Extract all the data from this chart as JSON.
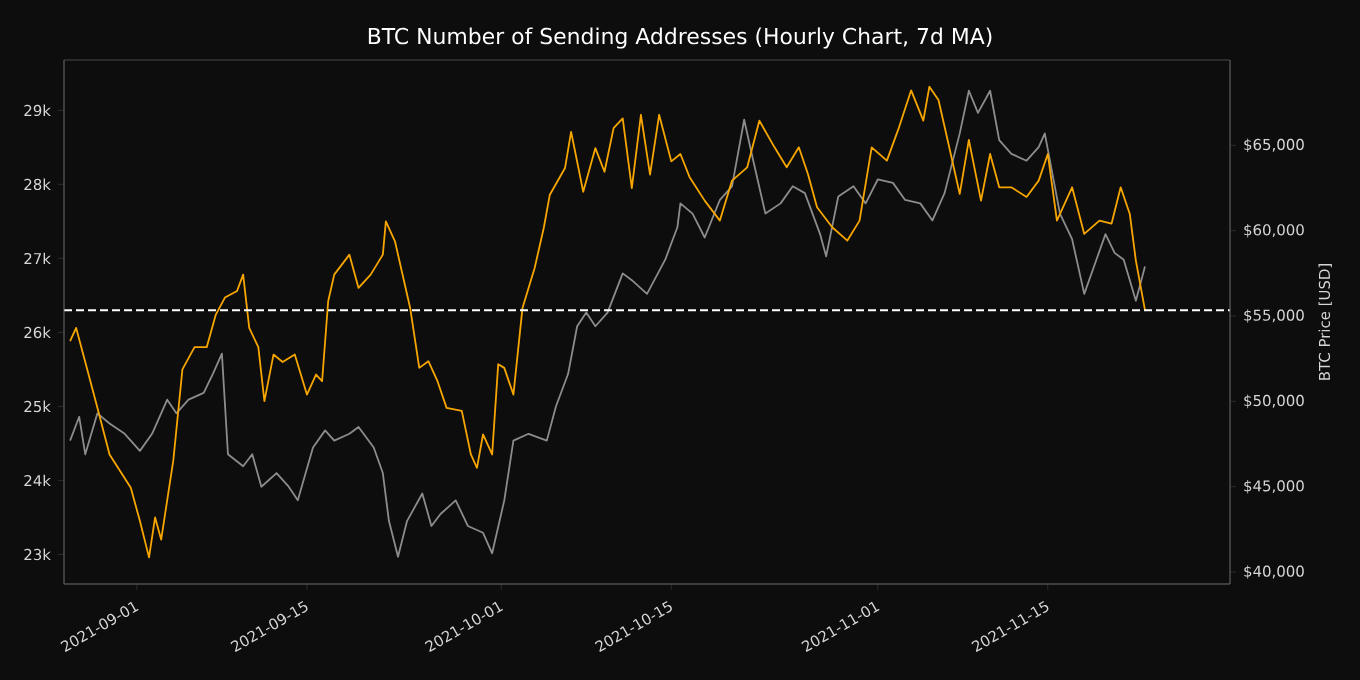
{
  "chart_data": {
    "type": "line",
    "title": "BTC Number of Sending Addresses (Hourly Chart, 7d MA)",
    "y2label": "BTC Price [USD]",
    "xlim": [
      "2021-08-26",
      "2021-11-30"
    ],
    "xticks": [
      {
        "value": "2021-09-01",
        "label": "2021-09-01"
      },
      {
        "value": "2021-09-15",
        "label": "2021-09-15"
      },
      {
        "value": "2021-10-01",
        "label": "2021-10-01"
      },
      {
        "value": "2021-10-15",
        "label": "2021-10-15"
      },
      {
        "value": "2021-11-01",
        "label": "2021-11-01"
      },
      {
        "value": "2021-11-15",
        "label": "2021-11-15"
      }
    ],
    "ylim": [
      22600,
      29680
    ],
    "yticks": [
      {
        "value": 23000,
        "label": "23k"
      },
      {
        "value": 24000,
        "label": "24k"
      },
      {
        "value": 25000,
        "label": "25k"
      },
      {
        "value": 26000,
        "label": "26k"
      },
      {
        "value": 27000,
        "label": "27k"
      },
      {
        "value": 28000,
        "label": "28k"
      },
      {
        "value": 29000,
        "label": "29k"
      }
    ],
    "y2lim": [
      39300,
      70000
    ],
    "y2ticks": [
      {
        "value": 40000,
        "label": "$40,000"
      },
      {
        "value": 45000,
        "label": "$45,000"
      },
      {
        "value": 50000,
        "label": "$50,000"
      },
      {
        "value": 55000,
        "label": "$55,000"
      },
      {
        "value": 60000,
        "label": "$60,000"
      },
      {
        "value": 65000,
        "label": "$65,000"
      }
    ],
    "grid": false,
    "marker": "none",
    "line_style": "solid",
    "ref_lines": [
      {
        "axis": "y",
        "value": 26300,
        "color": "#ffffff",
        "line_style": "dashed"
      }
    ],
    "series": [
      {
        "axis": "y2",
        "color": "#8c8c8c",
        "x": [
          "2021-08-26T12:00",
          "2021-08-27T06:00",
          "2021-08-27T18:00",
          "2021-08-28T18:00",
          "2021-08-29T18:00",
          "2021-08-31T00:00",
          "2021-09-01T06:00",
          "2021-09-02T06:00",
          "2021-09-03T12:00",
          "2021-09-04T06:00",
          "2021-09-05T06:00",
          "2021-09-06T12:00",
          "2021-09-07T06:00",
          "2021-09-08T00:00",
          "2021-09-08T12:00",
          "2021-09-09T18:00",
          "2021-09-10T12:00",
          "2021-09-11T06:00",
          "2021-09-12T12:00",
          "2021-09-13T12:00",
          "2021-09-14T06:00",
          "2021-09-15T12:00",
          "2021-09-16T12:00",
          "2021-09-17T06:00",
          "2021-09-18T12:00",
          "2021-09-19T06:00",
          "2021-09-20T12:00",
          "2021-09-21T06:00",
          "2021-09-21T18:00",
          "2021-09-22T12:00",
          "2021-09-23T06:00",
          "2021-09-24T12:00",
          "2021-09-25T06:00",
          "2021-09-26T00:00",
          "2021-09-27T06:00",
          "2021-09-28T06:00",
          "2021-09-29T12:00",
          "2021-09-30T06:00",
          "2021-10-01T06:00",
          "2021-10-02T00:00",
          "2021-10-03T06:00",
          "2021-10-04T18:00",
          "2021-10-05T12:00",
          "2021-10-06T12:00",
          "2021-10-07T06:00",
          "2021-10-08T00:00",
          "2021-10-08T18:00",
          "2021-10-09T18:00",
          "2021-10-11T00:00",
          "2021-10-11T18:00",
          "2021-10-13T00:00",
          "2021-10-14T12:00",
          "2021-10-15T12:00",
          "2021-10-15T18:00",
          "2021-10-16T18:00",
          "2021-10-17T18:00",
          "2021-10-19T00:00",
          "2021-10-20T00:00",
          "2021-10-21T00:00",
          "2021-10-21T18:00",
          "2021-10-22T18:00",
          "2021-10-24T00:00",
          "2021-10-25T00:00",
          "2021-10-26T00:00",
          "2021-10-27T06:00",
          "2021-10-27T18:00",
          "2021-10-28T18:00",
          "2021-10-30T00:00",
          "2021-10-31T00:00",
          "2021-11-01T00:00",
          "2021-11-02T06:00",
          "2021-11-03T06:00",
          "2021-11-04T12:00",
          "2021-11-05T12:00",
          "2021-11-06T12:00",
          "2021-11-07T18:00",
          "2021-11-08T12:00",
          "2021-11-09T06:00",
          "2021-11-10T06:00",
          "2021-11-11T00:00",
          "2021-11-12T00:00",
          "2021-11-13T06:00",
          "2021-11-14T06:00",
          "2021-11-14T18:00",
          "2021-11-16T00:00",
          "2021-11-17T00:00",
          "2021-11-18T00:00",
          "2021-11-19T00:00",
          "2021-11-19T18:00",
          "2021-11-20T12:00",
          "2021-11-21T06:00",
          "2021-11-22T06:00",
          "2021-11-23T00:00"
        ],
        "values": [
          47700,
          49100,
          46900,
          49300,
          48700,
          48100,
          47100,
          48100,
          50100,
          49300,
          50100,
          50500,
          51600,
          52800,
          46900,
          46200,
          46900,
          45000,
          45800,
          45000,
          44200,
          47300,
          48300,
          47700,
          48100,
          48500,
          47300,
          45800,
          43000,
          40900,
          43000,
          44600,
          42700,
          43400,
          44200,
          42700,
          42300,
          41100,
          44200,
          47700,
          48100,
          47700,
          49700,
          51600,
          54400,
          55200,
          54400,
          55200,
          57500,
          57100,
          56300,
          58300,
          60200,
          61600,
          61000,
          59600,
          61800,
          62600,
          66500,
          64100,
          61000,
          61600,
          62600,
          62200,
          59800,
          58500,
          62000,
          62600,
          61600,
          63000,
          62800,
          61800,
          61600,
          60600,
          62200,
          65700,
          68200,
          66900,
          68200,
          65300,
          64500,
          64100,
          64900,
          65700,
          61000,
          59500,
          56300,
          58300,
          59800,
          58700,
          58300,
          55900,
          57900
        ]
      },
      {
        "axis": "y",
        "color": "#f7a600",
        "x": [
          "2021-08-26T12:00",
          "2021-08-27T00:00",
          "2021-08-27T18:00",
          "2021-08-28T18:00",
          "2021-08-29T18:00",
          "2021-08-31T12:00",
          "2021-09-01T06:00",
          "2021-09-02T00:00",
          "2021-09-02T12:00",
          "2021-09-03T00:00",
          "2021-09-04T00:00",
          "2021-09-04T18:00",
          "2021-09-05T18:00",
          "2021-09-06T18:00",
          "2021-09-07T12:00",
          "2021-09-08T06:00",
          "2021-09-09T06:00",
          "2021-09-09T18:00",
          "2021-09-10T06:00",
          "2021-09-11T00:00",
          "2021-09-11T12:00",
          "2021-09-12T06:00",
          "2021-09-13T00:00",
          "2021-09-14T00:00",
          "2021-09-15T00:00",
          "2021-09-15T18:00",
          "2021-09-16T06:00",
          "2021-09-16T18:00",
          "2021-09-17T06:00",
          "2021-09-18T12:00",
          "2021-09-19T06:00",
          "2021-09-20T06:00",
          "2021-09-21T06:00",
          "2021-09-21T12:00",
          "2021-09-22T06:00",
          "2021-09-22T18:00",
          "2021-09-23T12:00",
          "2021-09-24T06:00",
          "2021-09-25T00:00",
          "2021-09-25T18:00",
          "2021-09-26T12:00",
          "2021-09-27T18:00",
          "2021-09-28T12:00",
          "2021-09-29T00:00",
          "2021-09-29T12:00",
          "2021-09-30T06:00",
          "2021-09-30T18:00",
          "2021-10-01T06:00",
          "2021-10-02T00:00",
          "2021-10-02T18:00",
          "2021-10-03T18:00",
          "2021-10-04T12:00",
          "2021-10-05T00:00",
          "2021-10-06T06:00",
          "2021-10-06T18:00",
          "2021-10-07T18:00",
          "2021-10-08T18:00",
          "2021-10-09T12:00",
          "2021-10-10T06:00",
          "2021-10-11T00:00",
          "2021-10-11T18:00",
          "2021-10-12T12:00",
          "2021-10-13T06:00",
          "2021-10-14T00:00",
          "2021-10-15T00:00",
          "2021-10-15T18:00",
          "2021-10-16T12:00",
          "2021-10-17T18:00",
          "2021-10-19T00:00",
          "2021-10-20T00:00",
          "2021-10-21T06:00",
          "2021-10-22T06:00",
          "2021-10-23T12:00",
          "2021-10-24T12:00",
          "2021-10-25T12:00",
          "2021-10-26T06:00",
          "2021-10-27T00:00",
          "2021-10-28T06:00",
          "2021-10-29T12:00",
          "2021-10-30T12:00",
          "2021-10-31T12:00",
          "2021-11-01T18:00",
          "2021-11-02T18:00",
          "2021-11-03T18:00",
          "2021-11-04T18:00",
          "2021-11-05T06:00",
          "2021-11-06T00:00",
          "2021-11-06T18:00",
          "2021-11-07T18:00",
          "2021-11-08T12:00",
          "2021-11-09T12:00",
          "2021-11-10T06:00",
          "2021-11-11T00:00",
          "2021-11-12T00:00",
          "2021-11-13T06:00",
          "2021-11-14T06:00",
          "2021-11-15T00:00",
          "2021-11-15T18:00",
          "2021-11-17T00:00",
          "2021-11-18T00:00",
          "2021-11-19T06:00",
          "2021-11-20T06:00",
          "2021-11-21T00:00",
          "2021-11-21T18:00",
          "2021-11-22T06:00",
          "2021-11-23T00:00"
        ],
        "values": [
          25880,
          26060,
          25600,
          24980,
          24350,
          23900,
          23450,
          22960,
          23500,
          23200,
          24270,
          25500,
          25800,
          25800,
          26240,
          26470,
          26560,
          26780,
          26060,
          25800,
          25070,
          25700,
          25600,
          25700,
          25160,
          25430,
          25340,
          26420,
          26780,
          27050,
          26600,
          26780,
          27050,
          27500,
          27230,
          26870,
          26330,
          25520,
          25610,
          25340,
          24980,
          24940,
          24350,
          24170,
          24620,
          24350,
          25570,
          25520,
          25160,
          26330,
          26870,
          27410,
          27860,
          28220,
          28710,
          27900,
          28490,
          28170,
          28760,
          28890,
          27950,
          28940,
          28130,
          28940,
          28310,
          28410,
          28100,
          27780,
          27510,
          28050,
          28230,
          28860,
          28500,
          28230,
          28500,
          28140,
          27690,
          27420,
          27240,
          27510,
          28500,
          28320,
          28770,
          29270,
          28860,
          29320,
          29140,
          28600,
          27870,
          28600,
          27780,
          28410,
          27960,
          27960,
          27830,
          28050,
          28410,
          27510,
          27960,
          27330,
          27510,
          27470,
          27960,
          27600,
          26970,
          26300
        ]
      }
    ]
  }
}
